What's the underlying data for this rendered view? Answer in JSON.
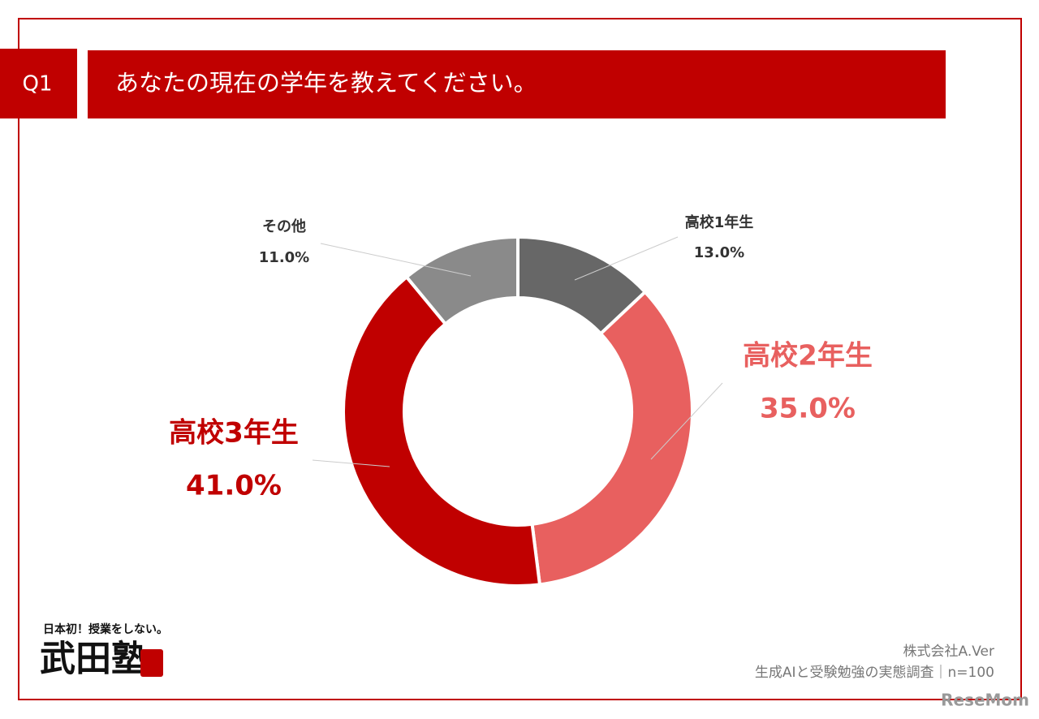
{
  "header": {
    "badge": "Q1",
    "title": "あなたの現在の学年を教えてください。"
  },
  "chart_data": {
    "type": "donut",
    "categories": [
      "高校1年生",
      "高校2年生",
      "高校3年生",
      "その他"
    ],
    "values": [
      13.0,
      35.0,
      41.0,
      11.0
    ],
    "value_labels": [
      "13.0%",
      "35.0%",
      "41.0%",
      "11.0%"
    ],
    "colors": [
      "#676767",
      "#e8605f",
      "#c00000",
      "#8a8a8a"
    ]
  },
  "logo": {
    "tagline": "日本初！授業をしない。",
    "name": "武田塾"
  },
  "footer": {
    "company": "株式会社A.Ver",
    "survey": "生成AIと受験勉強の実態調査｜n=100"
  },
  "watermark": "ReseMom"
}
